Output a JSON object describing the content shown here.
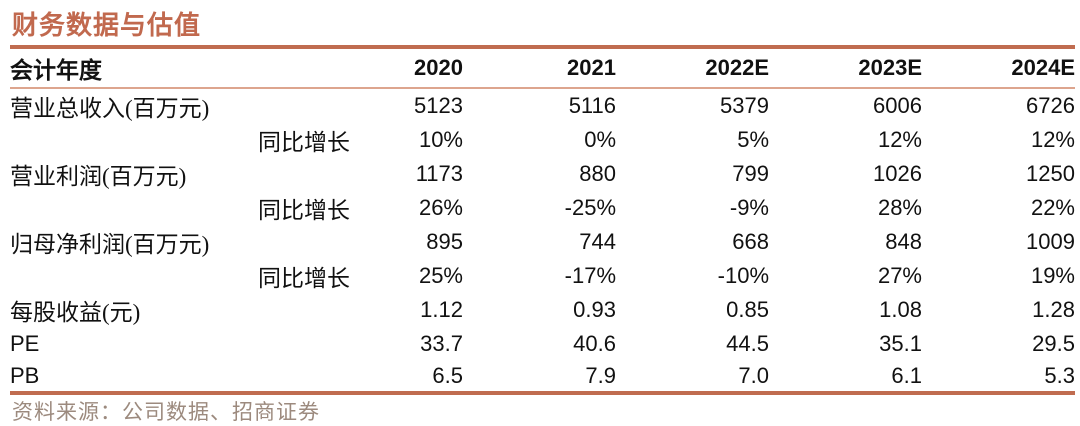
{
  "title": "财务数据与估值",
  "source": "资料来源：公司数据、招商证券",
  "colors": {
    "accent_rule": "#C06C50",
    "light_rule": "#DDA58E",
    "title_text": "#C1694E",
    "body_text": "#111111",
    "source_text": "#9C8A7E"
  },
  "table": {
    "header": [
      "会计年度",
      "2020",
      "2021",
      "2022E",
      "2023E",
      "2024E"
    ],
    "rows": [
      {
        "label": "营业总收入(百万元)",
        "indent": false,
        "values": [
          "5123",
          "5116",
          "5379",
          "6006",
          "6726"
        ]
      },
      {
        "label": "同比增长",
        "indent": true,
        "values": [
          "10%",
          "0%",
          "5%",
          "12%",
          "12%"
        ]
      },
      {
        "label": "营业利润(百万元)",
        "indent": false,
        "values": [
          "1173",
          "880",
          "799",
          "1026",
          "1250"
        ]
      },
      {
        "label": "同比增长",
        "indent": true,
        "values": [
          "26%",
          "-25%",
          "-9%",
          "28%",
          "22%"
        ]
      },
      {
        "label": "归母净利润(百万元)",
        "indent": false,
        "values": [
          "895",
          "744",
          "668",
          "848",
          "1009"
        ]
      },
      {
        "label": "同比增长",
        "indent": true,
        "values": [
          "25%",
          "-17%",
          "-10%",
          "27%",
          "19%"
        ]
      },
      {
        "label": "每股收益(元)",
        "indent": false,
        "values": [
          "1.12",
          "0.93",
          "0.85",
          "1.08",
          "1.28"
        ]
      },
      {
        "label": "PE",
        "indent": false,
        "values": [
          "33.7",
          "40.6",
          "44.5",
          "35.1",
          "29.5"
        ]
      },
      {
        "label": "PB",
        "indent": false,
        "values": [
          "6.5",
          "7.9",
          "7.0",
          "6.1",
          "5.3"
        ]
      }
    ]
  }
}
